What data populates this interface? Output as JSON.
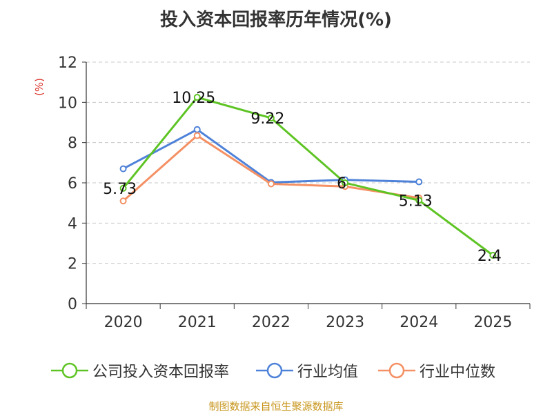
{
  "chart_data": {
    "type": "line",
    "title": "投入资本回报率历年情况(%)",
    "ylabel": "(%)",
    "xlabel": "",
    "ylim": [
      0,
      12
    ],
    "yticks": [
      0,
      2,
      4,
      6,
      8,
      10,
      12
    ],
    "categories": [
      "2020",
      "2021",
      "2022",
      "2023",
      "2024",
      "2025"
    ],
    "grid": true,
    "legend_position": "bottom",
    "series": [
      {
        "name": "公司投入资本回报率",
        "color": "#5ec424",
        "values": [
          5.73,
          10.25,
          9.22,
          6,
          5.13,
          2.4
        ],
        "labels": [
          "5.73",
          "10.25",
          "9.22",
          "6",
          "5.13",
          "2.4"
        ]
      },
      {
        "name": "行业均值",
        "color": "#4e82d9",
        "values": [
          6.7,
          8.65,
          6.02,
          6.15,
          6.05,
          null
        ],
        "labels": []
      },
      {
        "name": "行业中位数",
        "color": "#f49063",
        "values": [
          5.1,
          8.35,
          5.95,
          5.82,
          5.25,
          null
        ],
        "labels": []
      }
    ]
  },
  "footer": "制图数据来自恒生聚源数据库"
}
